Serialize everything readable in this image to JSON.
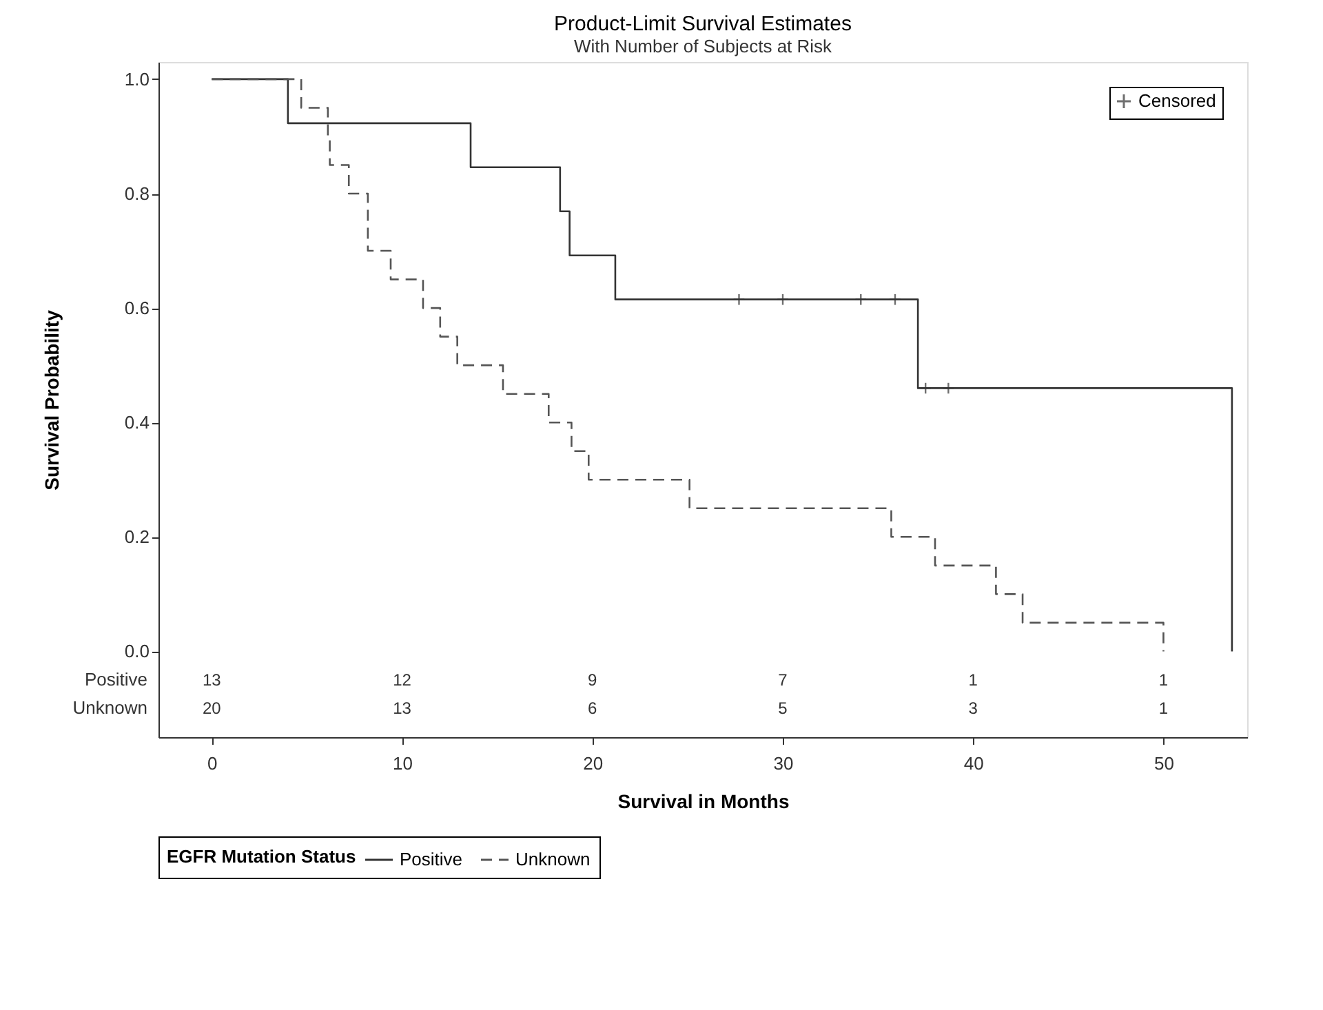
{
  "chart_data": {
    "type": "step",
    "title": "Product-Limit Survival Estimates",
    "subtitle": "With Number of Subjects at Risk",
    "xlabel": "Survival in Months",
    "ylabel": "Survival Probability",
    "legend_title": "EGFR Mutation Status",
    "legend": "bottom",
    "xlim": [
      -2.8,
      54.4
    ],
    "ylim": [
      -0.15,
      1.03
    ],
    "xticks": [
      0,
      10,
      20,
      30,
      40,
      50
    ],
    "yticks": [
      {
        "value": 0,
        "label": "0.0"
      },
      {
        "value": 0.2,
        "label": "0.2"
      },
      {
        "value": 0.4,
        "label": "0.4"
      },
      {
        "value": 0.6,
        "label": "0.6"
      },
      {
        "value": 0.8,
        "label": "0.8"
      },
      {
        "value": 1,
        "label": "1.0"
      }
    ],
    "grid": false,
    "series": [
      {
        "name": "Positive",
        "color": "#333333",
        "line_style": "solid",
        "x": [
          0,
          4.0,
          13.6,
          18.3,
          18.8,
          21.2,
          37.1,
          53.6
        ],
        "values": [
          1,
          0.923,
          0.846,
          0.769,
          0.692,
          0.615,
          0.46,
          0
        ]
      },
      {
        "name": "Unknown",
        "color": "#555555",
        "line_style": "dashed",
        "x": [
          0,
          4.7,
          6.1,
          6.2,
          7.2,
          8.2,
          9.4,
          11.1,
          12.0,
          12.9,
          15.3,
          17.7,
          18.9,
          19.8,
          25.1,
          35.7,
          38.0,
          41.2,
          42.6,
          50.0
        ],
        "values": [
          1,
          0.95,
          0.9,
          0.85,
          0.8,
          0.7,
          0.65,
          0.6,
          0.55,
          0.5,
          0.45,
          0.4,
          0.35,
          0.3,
          0.25,
          0.2,
          0.15,
          0.1,
          0.05,
          0
        ]
      },
      {
        "name": "Censored",
        "type": "scatter",
        "marker": "cross",
        "color": "#333333",
        "x": [
          27.7,
          30.0,
          34.1,
          35.9,
          37.5,
          38.7
        ],
        "values": [
          0.615,
          0.615,
          0.615,
          0.615,
          0.46,
          0.46
        ]
      }
    ],
    "annotations": [
      "Positive",
      "13",
      "12",
      "9",
      "7",
      "1",
      "1",
      "Unknown",
      "20",
      "13",
      "6",
      "5",
      "3",
      "1"
    ]
  }
}
